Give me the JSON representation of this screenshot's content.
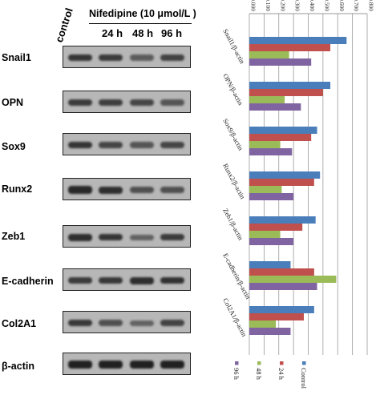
{
  "blot": {
    "header": {
      "control": "control",
      "treatment": "Nifedipine (10 μmol/L )",
      "times": [
        "24 h",
        "48 h",
        "96 h"
      ]
    },
    "rows": [
      {
        "label": "Snail1",
        "intensities": [
          0.75,
          0.7,
          0.45,
          0.65
        ]
      },
      {
        "label": "OPN",
        "intensities": [
          0.7,
          0.68,
          0.62,
          0.5
        ]
      },
      {
        "label": "Sox9",
        "intensities": [
          0.75,
          0.62,
          0.5,
          0.62
        ]
      },
      {
        "label": "Runx2",
        "intensities": [
          0.85,
          0.8,
          0.55,
          0.55
        ]
      },
      {
        "label": "Zeb1",
        "intensities": [
          0.8,
          0.75,
          0.4,
          0.7
        ]
      },
      {
        "label": "E-cadherin",
        "intensities": [
          0.7,
          0.72,
          0.8,
          0.78
        ]
      },
      {
        "label": "Col2A1",
        "intensities": [
          0.72,
          0.55,
          0.4,
          0.65
        ]
      },
      {
        "label": "β-actin",
        "intensities": [
          0.9,
          0.9,
          0.9,
          0.9
        ]
      }
    ]
  },
  "chart_data": {
    "type": "bar",
    "orientation": "horizontal",
    "categories": [
      "Snail1/β-actin",
      "OPN/β-actin",
      "Sox9/β-actin",
      "Runx2/β-actin",
      "Zeb1/β-actin",
      "E-cadherin/β-actin",
      "Col2A1/β-actin"
    ],
    "series": [
      {
        "name": "Control",
        "color": "#4a7ebb",
        "values": [
          0.66,
          0.55,
          0.46,
          0.48,
          0.45,
          0.28,
          0.44
        ]
      },
      {
        "name": "24 h",
        "color": "#c0504d",
        "values": [
          0.55,
          0.5,
          0.42,
          0.44,
          0.36,
          0.44,
          0.37
        ]
      },
      {
        "name": "48 h",
        "color": "#9bbb59",
        "values": [
          0.27,
          0.24,
          0.21,
          0.22,
          0.21,
          0.59,
          0.18
        ]
      },
      {
        "name": "96 h",
        "color": "#8064a2",
        "values": [
          0.42,
          0.35,
          0.29,
          0.3,
          0.3,
          0.46,
          0.28
        ]
      }
    ],
    "tick_labels": [
      "0.000",
      "0.100",
      "0.200",
      "0.300",
      "0.400",
      "0.500",
      "0.600",
      "0.700",
      "0.800"
    ],
    "xlim": [
      0,
      0.8
    ],
    "grid": true,
    "legend_placement": "bottom"
  }
}
